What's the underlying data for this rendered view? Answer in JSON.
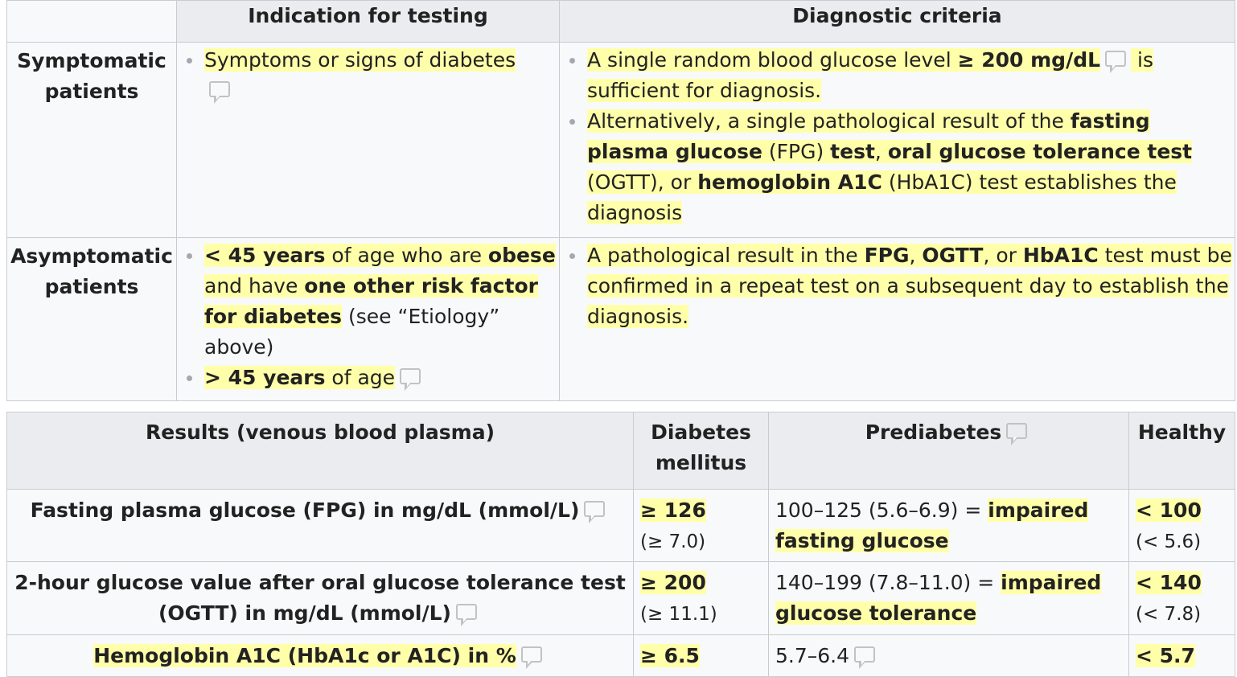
{
  "table1": {
    "headers": [
      "",
      "Indication for testing",
      "Diagnostic criteria"
    ],
    "rows": [
      {
        "label": "Symptomatic patients",
        "indication": [
          {
            "text": "Symptoms or signs of diabetes"
          }
        ],
        "criteria": [
          {
            "p1": "A single random blood glucose level ",
            "b1": "≥ 200 mg/dL",
            "p2": " is sufficient for diagnosis."
          },
          {
            "p1": "Alternatively, a single pathological result of the ",
            "b1": "fasting plasma glucose",
            "p2": " (FPG) ",
            "b2": "test",
            "p3": ", ",
            "b3": "oral glucose tolerance test",
            "p4": " (OGTT), or ",
            "b4": "hemoglobin A1C",
            "p5": " (HbA1C) test establishes the diagnosis"
          }
        ]
      },
      {
        "label": "Asymptomatic patients",
        "indication": [
          {
            "b1": "< 45 years",
            "p1": " of age who are ",
            "b2": "obese",
            "p2": " and have ",
            "b3": "one other risk factor for diabetes",
            "p3": " (see “Etiology” above)"
          },
          {
            "b1": "> 45 years",
            "p1": " of age"
          }
        ],
        "criteria": [
          {
            "p1": "A pathological result in the ",
            "b1": "FPG",
            "p2": ", ",
            "b2": "OGTT",
            "p3": ", or ",
            "b3": "HbA1C",
            "p4": " test must be confirmed in a repeat test on a subsequent day to establish the diagnosis."
          }
        ]
      }
    ]
  },
  "table2": {
    "headers": [
      "Results (venous blood plasma)",
      "Diabetes mellitus",
      "Prediabetes",
      "Healthy"
    ],
    "rows": [
      {
        "label": "Fasting plasma glucose (FPG) in mg/dL (mmol/L)",
        "diabetes_main": "≥ 126",
        "diabetes_sub": "(≥ 7.0)",
        "pre_text": "100–125 (5.6–6.9) = ",
        "pre_bold": "impaired fasting glucose",
        "healthy_main": "< 100",
        "healthy_sub": "(< 5.6)"
      },
      {
        "label": "2-hour glucose value after oral glucose tolerance test (OGTT) in mg/dL (mmol/L)",
        "diabetes_main": "≥ 200",
        "diabetes_sub": "(≥ 11.1)",
        "pre_text": "140–199 (7.8–11.0) = ",
        "pre_bold": "impaired glucose tolerance",
        "healthy_main": "< 140",
        "healthy_sub": "(< 7.8)"
      },
      {
        "label": "Hemoglobin A1C (HbA1c or A1C) in %",
        "diabetes_main": "≥ 6.5",
        "pre_text": "5.7–6.4",
        "healthy_main": "< 5.7"
      }
    ]
  },
  "colors": {
    "highlight": "#ffffaa",
    "header_bg": "#eaecf0",
    "cell_bg": "#f8f9fa",
    "border": "#c8ccd1",
    "note_icon": "#c2c2c2"
  },
  "icons": [
    "comment-icon"
  ]
}
